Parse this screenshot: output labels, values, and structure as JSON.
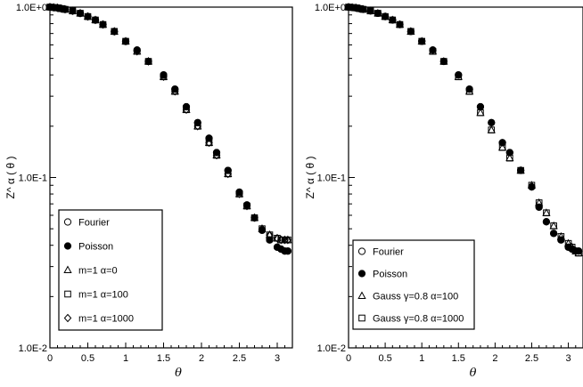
{
  "chart_data": [
    {
      "type": "scatter",
      "xlabel": "θ",
      "ylabel": "Z^ α ( θ )",
      "y_scale": "log",
      "xlim": [
        0,
        3.2
      ],
      "ylim": [
        0.01,
        1
      ],
      "x_ticks": [
        "0",
        "0.5",
        "1",
        "1.5",
        "2",
        "2.5",
        "3"
      ],
      "y_ticks": [
        "1.0E-2",
        "1.0E-1",
        "1.0E+0"
      ],
      "legend_position": "bottom-left",
      "series": [
        {
          "name": "Fourier",
          "marker": "circle-open",
          "x": [
            0.0,
            0.05,
            0.1,
            0.15,
            0.2,
            0.3,
            0.4,
            0.5,
            0.6,
            0.7,
            0.85,
            1.0,
            1.15,
            1.3,
            1.5,
            1.65,
            1.8,
            1.95,
            2.1,
            2.2,
            2.35,
            2.5,
            2.6,
            2.7,
            2.8,
            2.9,
            3.0,
            3.05,
            3.1,
            3.14
          ],
          "y": [
            1.0,
            0.995,
            0.99,
            0.98,
            0.97,
            0.95,
            0.92,
            0.88,
            0.84,
            0.79,
            0.72,
            0.63,
            0.56,
            0.48,
            0.4,
            0.33,
            0.26,
            0.21,
            0.17,
            0.14,
            0.11,
            0.082,
            0.069,
            0.058,
            0.049,
            0.043,
            0.039,
            0.038,
            0.037,
            0.037
          ]
        },
        {
          "name": "Poisson",
          "marker": "circle-filled",
          "x": [
            0.0,
            0.05,
            0.1,
            0.15,
            0.2,
            0.3,
            0.4,
            0.5,
            0.6,
            0.7,
            0.85,
            1.0,
            1.15,
            1.3,
            1.5,
            1.65,
            1.8,
            1.95,
            2.1,
            2.2,
            2.35,
            2.5,
            2.6,
            2.7,
            2.8,
            2.9,
            3.0,
            3.05,
            3.1,
            3.14
          ],
          "y": [
            1.0,
            0.995,
            0.99,
            0.98,
            0.97,
            0.95,
            0.92,
            0.88,
            0.84,
            0.79,
            0.72,
            0.63,
            0.56,
            0.48,
            0.4,
            0.33,
            0.26,
            0.21,
            0.17,
            0.14,
            0.11,
            0.082,
            0.069,
            0.058,
            0.049,
            0.043,
            0.039,
            0.038,
            0.037,
            0.037
          ]
        },
        {
          "name": "m=1 α=0",
          "marker": "triangle-open",
          "x": [
            0.0,
            0.05,
            0.1,
            0.15,
            0.2,
            0.3,
            0.4,
            0.5,
            0.6,
            0.7,
            0.85,
            1.0,
            1.15,
            1.3,
            1.5,
            1.65,
            1.8,
            1.95,
            2.1,
            2.2,
            2.35,
            2.5,
            2.6,
            2.7,
            2.8,
            2.9,
            3.0,
            3.05,
            3.1,
            3.14
          ],
          "y": [
            1.0,
            0.995,
            0.99,
            0.98,
            0.97,
            0.95,
            0.92,
            0.88,
            0.84,
            0.79,
            0.72,
            0.63,
            0.55,
            0.48,
            0.39,
            0.32,
            0.25,
            0.2,
            0.16,
            0.135,
            0.105,
            0.08,
            0.068,
            0.058,
            0.05,
            0.046,
            0.044,
            0.043,
            0.043,
            0.043
          ]
        },
        {
          "name": "m=1 α=100",
          "marker": "square-open",
          "x": [
            0.0,
            0.05,
            0.1,
            0.15,
            0.2,
            0.3,
            0.4,
            0.5,
            0.6,
            0.7,
            0.85,
            1.0,
            1.15,
            1.3,
            1.5,
            1.65,
            1.8,
            1.95,
            2.1,
            2.2,
            2.35,
            2.5,
            2.6,
            2.7,
            2.8,
            2.9,
            3.0,
            3.05,
            3.1,
            3.14
          ],
          "y": [
            1.0,
            0.995,
            0.99,
            0.98,
            0.97,
            0.95,
            0.92,
            0.88,
            0.84,
            0.79,
            0.72,
            0.63,
            0.55,
            0.48,
            0.39,
            0.32,
            0.25,
            0.2,
            0.16,
            0.135,
            0.105,
            0.08,
            0.068,
            0.058,
            0.05,
            0.046,
            0.044,
            0.043,
            0.043,
            0.043
          ]
        },
        {
          "name": "m=1 α=1000",
          "marker": "diamond-open",
          "x": [
            0.0,
            0.05,
            0.1,
            0.15,
            0.2,
            0.3,
            0.4,
            0.5,
            0.6,
            0.7,
            0.85,
            1.0,
            1.15,
            1.3,
            1.5,
            1.65,
            1.8,
            1.95,
            2.1,
            2.2,
            2.35,
            2.5,
            2.6,
            2.7,
            2.8,
            2.9,
            3.0,
            3.05,
            3.1,
            3.14
          ],
          "y": [
            1.0,
            0.995,
            0.99,
            0.98,
            0.97,
            0.95,
            0.92,
            0.88,
            0.84,
            0.79,
            0.72,
            0.63,
            0.55,
            0.48,
            0.39,
            0.32,
            0.25,
            0.2,
            0.16,
            0.135,
            0.105,
            0.08,
            0.068,
            0.058,
            0.05,
            0.046,
            0.044,
            0.043,
            0.043,
            0.043
          ]
        }
      ]
    },
    {
      "type": "scatter",
      "xlabel": "θ",
      "ylabel": "Z^ α ( θ )",
      "y_scale": "log",
      "xlim": [
        0,
        3.2
      ],
      "ylim": [
        0.01,
        1
      ],
      "x_ticks": [
        "0",
        "0.5",
        "1",
        "1.5",
        "2",
        "2.5",
        "3"
      ],
      "y_ticks": [
        "1.0E-2",
        "1.0E-1",
        "1.0E+0"
      ],
      "legend_position": "bottom-left",
      "series": [
        {
          "name": "Fourier",
          "marker": "circle-open",
          "x": [
            0.0,
            0.05,
            0.1,
            0.15,
            0.2,
            0.3,
            0.4,
            0.5,
            0.6,
            0.7,
            0.85,
            1.0,
            1.15,
            1.3,
            1.5,
            1.65,
            1.8,
            1.95,
            2.1,
            2.2,
            2.35,
            2.5,
            2.6,
            2.7,
            2.8,
            2.9,
            3.0,
            3.05,
            3.1,
            3.14
          ],
          "y": [
            1.0,
            0.995,
            0.99,
            0.98,
            0.97,
            0.95,
            0.92,
            0.88,
            0.84,
            0.79,
            0.72,
            0.63,
            0.56,
            0.48,
            0.4,
            0.33,
            0.26,
            0.21,
            0.16,
            0.14,
            0.11,
            0.088,
            0.067,
            0.055,
            0.047,
            0.043,
            0.039,
            0.038,
            0.037,
            0.037
          ]
        },
        {
          "name": "Poisson",
          "marker": "circle-filled",
          "x": [
            0.0,
            0.05,
            0.1,
            0.15,
            0.2,
            0.3,
            0.4,
            0.5,
            0.6,
            0.7,
            0.85,
            1.0,
            1.15,
            1.3,
            1.5,
            1.65,
            1.8,
            1.95,
            2.1,
            2.2,
            2.35,
            2.5,
            2.6,
            2.7,
            2.8,
            2.9,
            3.0,
            3.05,
            3.1,
            3.14
          ],
          "y": [
            1.0,
            0.995,
            0.99,
            0.98,
            0.97,
            0.95,
            0.92,
            0.88,
            0.84,
            0.79,
            0.72,
            0.63,
            0.56,
            0.48,
            0.4,
            0.33,
            0.26,
            0.21,
            0.16,
            0.14,
            0.11,
            0.088,
            0.067,
            0.055,
            0.047,
            0.043,
            0.039,
            0.038,
            0.037,
            0.037
          ]
        },
        {
          "name": "Gauss γ=0.8 α=100",
          "marker": "triangle-open",
          "x": [
            0.0,
            0.05,
            0.1,
            0.15,
            0.2,
            0.3,
            0.4,
            0.5,
            0.6,
            0.7,
            0.85,
            1.0,
            1.15,
            1.3,
            1.5,
            1.65,
            1.8,
            1.95,
            2.1,
            2.2,
            2.35,
            2.5,
            2.6,
            2.7,
            2.8,
            2.9,
            3.0,
            3.05,
            3.1,
            3.14
          ],
          "y": [
            1.0,
            0.995,
            0.99,
            0.98,
            0.97,
            0.95,
            0.92,
            0.88,
            0.84,
            0.79,
            0.72,
            0.63,
            0.55,
            0.48,
            0.39,
            0.32,
            0.24,
            0.19,
            0.15,
            0.13,
            0.11,
            0.09,
            0.071,
            0.062,
            0.052,
            0.045,
            0.041,
            0.039,
            0.037,
            0.036
          ]
        },
        {
          "name": "Gauss γ=0.8 α=1000",
          "marker": "square-open",
          "x": [
            0.0,
            0.05,
            0.1,
            0.15,
            0.2,
            0.3,
            0.4,
            0.5,
            0.6,
            0.7,
            0.85,
            1.0,
            1.15,
            1.3,
            1.5,
            1.65,
            1.8,
            1.95,
            2.1,
            2.2,
            2.35,
            2.5,
            2.6,
            2.7,
            2.8,
            2.9,
            3.0,
            3.05,
            3.1,
            3.14
          ],
          "y": [
            1.0,
            0.995,
            0.99,
            0.98,
            0.97,
            0.95,
            0.92,
            0.88,
            0.84,
            0.79,
            0.72,
            0.63,
            0.55,
            0.48,
            0.39,
            0.32,
            0.24,
            0.19,
            0.15,
            0.13,
            0.11,
            0.09,
            0.071,
            0.062,
            0.052,
            0.045,
            0.041,
            0.039,
            0.037,
            0.036
          ]
        }
      ]
    }
  ]
}
